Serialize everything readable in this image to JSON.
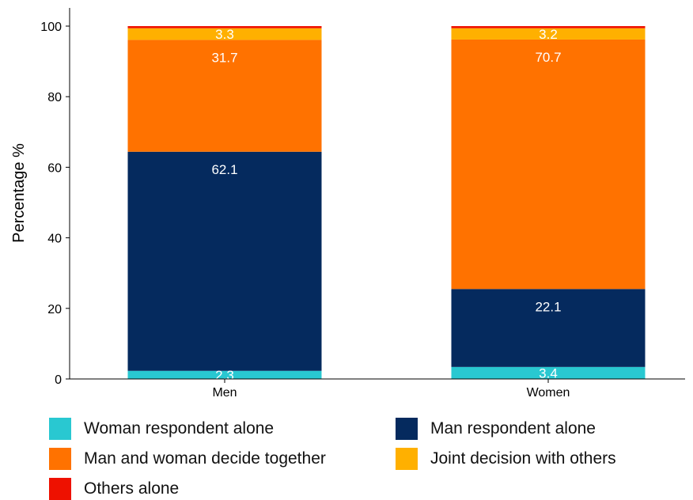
{
  "chart_data": {
    "type": "bar",
    "stacked": true,
    "categories": [
      "Men",
      "Women"
    ],
    "ylabel": "Percentage %",
    "ylim": [
      0,
      100
    ],
    "yticks": [
      0,
      20,
      40,
      60,
      80,
      100
    ],
    "grid": false,
    "legend_position": "bottom",
    "series": [
      {
        "name": "Woman respondent alone",
        "values": [
          2.3,
          3.4
        ],
        "color": "#29c8d1",
        "labels": [
          "2.3",
          "3.4"
        ]
      },
      {
        "name": "Man respondent alone",
        "values": [
          62.1,
          22.1
        ],
        "color": "#052a5e",
        "labels": [
          "62.1",
          "22.1"
        ]
      },
      {
        "name": "Man and woman decide together",
        "values": [
          31.7,
          70.7
        ],
        "color": "#ff7200",
        "labels": [
          "31.7",
          "70.7"
        ]
      },
      {
        "name": "Joint decision with others",
        "values": [
          3.3,
          3.2
        ],
        "color": "#ffb000",
        "labels": [
          "3.3",
          "3.2"
        ]
      },
      {
        "name": "Others alone",
        "values": [
          0.6,
          0.6
        ],
        "color": "#ee1100",
        "labels": [
          "",
          ""
        ]
      }
    ]
  }
}
